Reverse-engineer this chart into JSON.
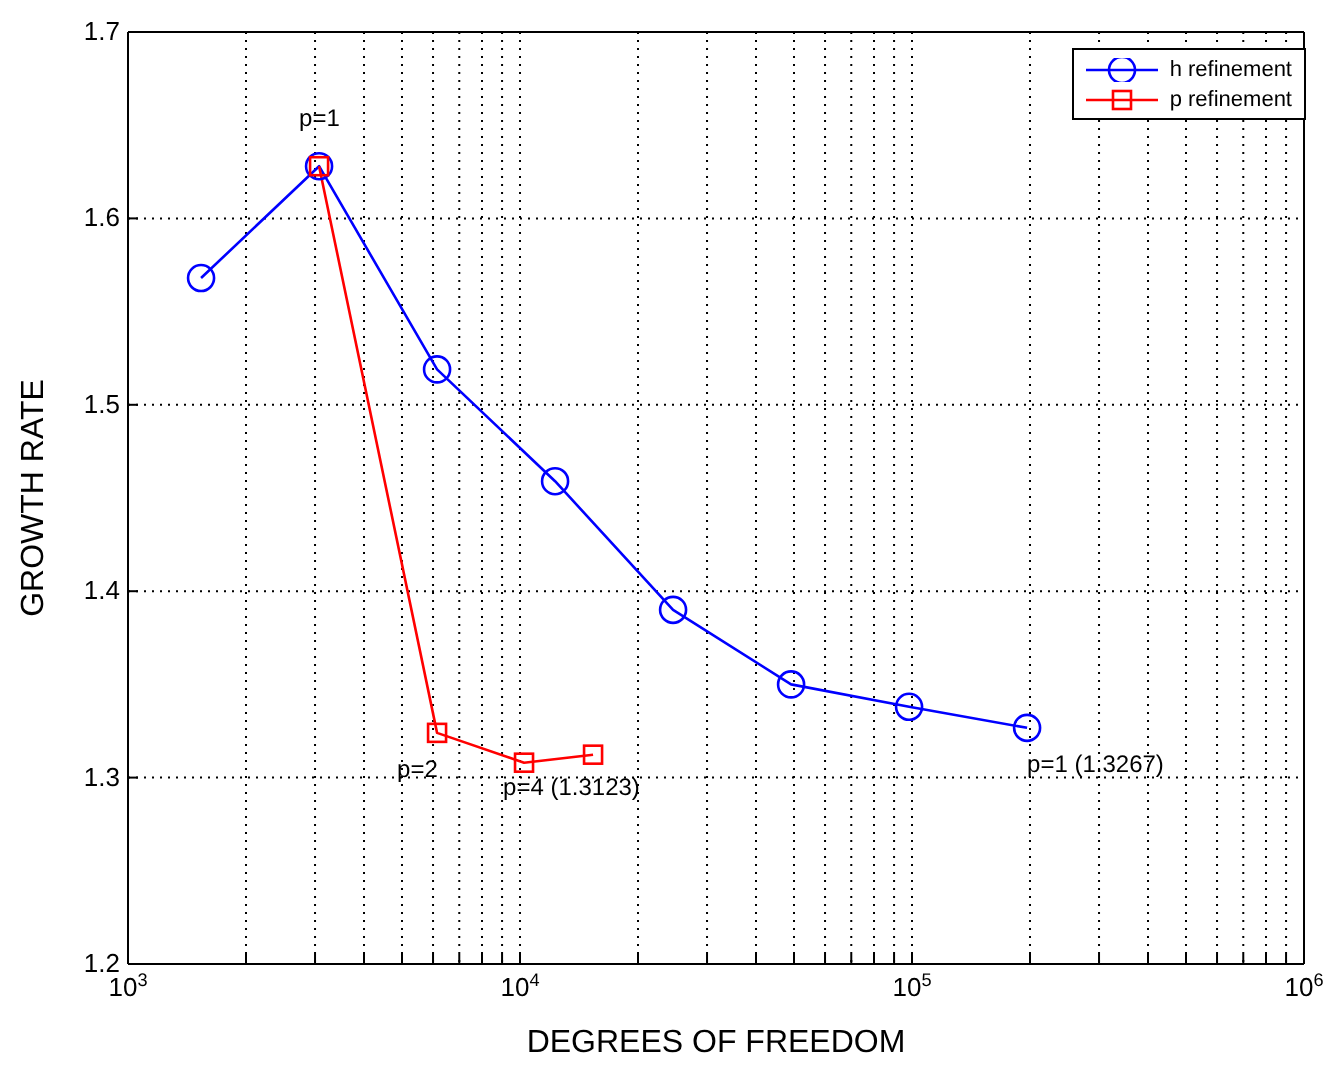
{
  "chart_data": {
    "type": "line",
    "xlabel": "DEGREES OF FREEDOM",
    "ylabel": "GROWTH RATE",
    "log": "x",
    "grid": true,
    "legend": "top right",
    "line_style": "solid",
    "xlim": [
      1000,
      1000000
    ],
    "ylim": [
      1.2,
      1.7
    ],
    "xticks": [
      {
        "value": 1000,
        "label": "10$^{3}$"
      },
      {
        "value": 2000,
        "label": null
      },
      {
        "value": 3000,
        "label": null
      },
      {
        "value": 4000,
        "label": null
      },
      {
        "value": 5000,
        "label": null
      },
      {
        "value": 6000,
        "label": null
      },
      {
        "value": 7000,
        "label": null
      },
      {
        "value": 8000,
        "label": null
      },
      {
        "value": 9000,
        "label": null
      },
      {
        "value": 10000,
        "label": "10$^{4}$"
      },
      {
        "value": 20000,
        "label": null
      },
      {
        "value": 30000,
        "label": null
      },
      {
        "value": 40000,
        "label": null
      },
      {
        "value": 50000,
        "label": null
      },
      {
        "value": 60000,
        "label": null
      },
      {
        "value": 70000,
        "label": null
      },
      {
        "value": 80000,
        "label": null
      },
      {
        "value": 90000,
        "label": null
      },
      {
        "value": 100000,
        "label": "10$^{5}$"
      },
      {
        "value": 200000,
        "label": null
      },
      {
        "value": 300000,
        "label": null
      },
      {
        "value": 400000,
        "label": null
      },
      {
        "value": 500000,
        "label": null
      },
      {
        "value": 600000,
        "label": null
      },
      {
        "value": 700000,
        "label": null
      },
      {
        "value": 800000,
        "label": null
      },
      {
        "value": 900000,
        "label": null
      },
      {
        "value": 1000000,
        "label": "10$^{6}$"
      }
    ],
    "yticks": [
      1.2,
      1.3,
      1.4,
      1.5,
      1.6,
      1.7
    ],
    "series": [
      {
        "name": "h refinement",
        "color": "#0000ff",
        "marker": "circle",
        "x": [
          1536,
          3072,
          6144,
          12288,
          24576,
          49152,
          98304,
          196608
        ],
        "values": [
          1.568,
          1.628,
          1.519,
          1.459,
          1.39,
          1.35,
          1.338,
          1.3267
        ]
      },
      {
        "name": "p refinement",
        "color": "#ff0000",
        "marker": "square",
        "x": [
          3072,
          6144,
          10240,
          15360
        ],
        "values": [
          1.628,
          1.324,
          1.308,
          1.3123
        ]
      }
    ],
    "annotations": [
      {
        "text": "p=1",
        "x": 3072,
        "y": 1.628
      },
      {
        "text": "p=2",
        "x": 6144,
        "y": 1.324
      },
      {
        "text": "p=4 (1.3123)",
        "x": 15360,
        "y": 1.3123
      },
      {
        "text": "p=1 (1.3267)",
        "x": 196608,
        "y": 1.3267
      }
    ]
  }
}
